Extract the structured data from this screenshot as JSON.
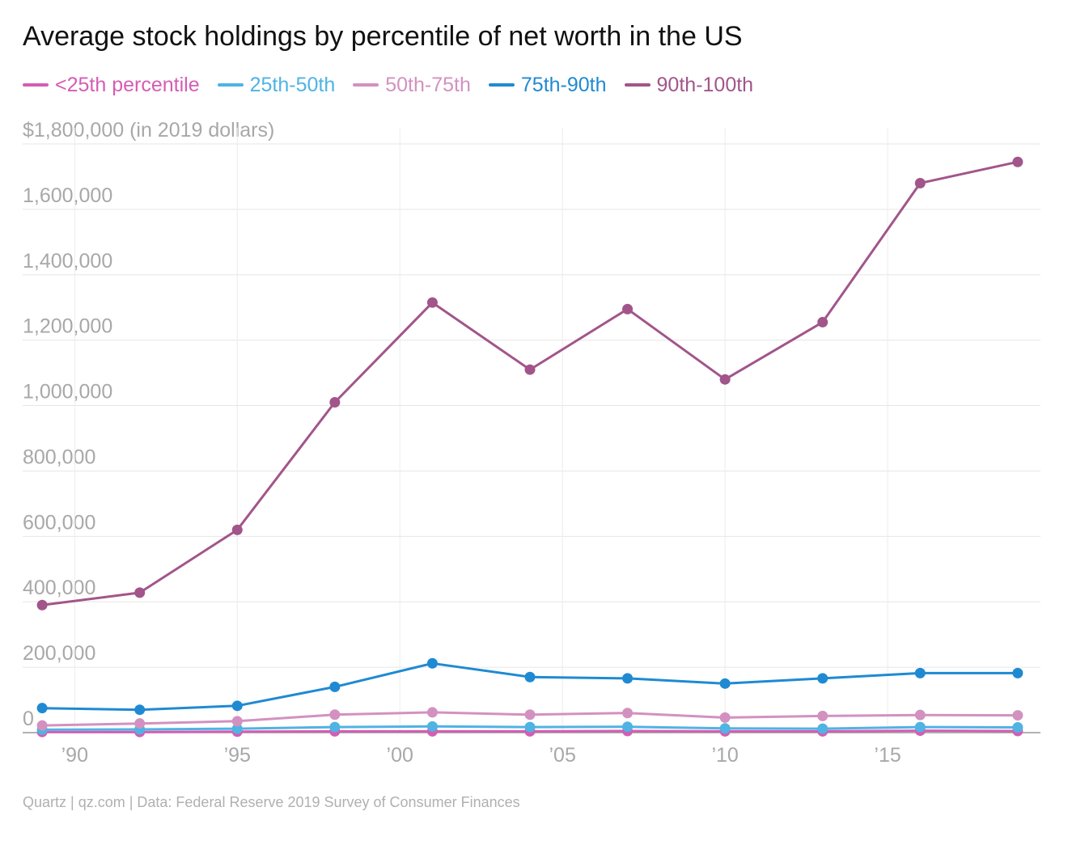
{
  "title": "Average stock holdings by percentile of net worth in the US",
  "source": "Quartz | qz.com | Data: Federal Reserve 2019 Survey of Consumer Finances",
  "chart_data": {
    "type": "line",
    "title": "Average stock holdings by percentile of net worth in the US",
    "y_tick_labels": [
      "0",
      "200,000",
      "400,000",
      "600,000",
      "800,000",
      "1,000,000",
      "1,200,000",
      "1,400,000",
      "1,600,000",
      "$1,800,000 (in 2019 dollars)"
    ],
    "y_ticks": [
      0,
      200000,
      400000,
      600000,
      800000,
      1000000,
      1200000,
      1400000,
      1600000,
      1800000
    ],
    "ylim": [
      0,
      1800000
    ],
    "x_tick_labels": [
      "’90",
      "’95",
      "’00",
      "’05",
      "’10",
      "’15"
    ],
    "x_ticks": [
      1990,
      1995,
      2000,
      2005,
      2010,
      2015
    ],
    "xlim": [
      1988.4,
      2019.7
    ],
    "x": [
      1989,
      1992,
      1995,
      1998,
      2001,
      2004,
      2007,
      2010,
      2013,
      2016,
      2019
    ],
    "grid": true,
    "legend_position": "top",
    "series": [
      {
        "name": "<25th percentile",
        "color": "#d45db4",
        "values": [
          2000,
          2000,
          3000,
          4000,
          4000,
          4000,
          5000,
          4000,
          4000,
          6000,
          5000
        ]
      },
      {
        "name": "25th-50th",
        "color": "#4fb3e3",
        "values": [
          9000,
          10000,
          12000,
          17000,
          19000,
          17000,
          18000,
          13000,
          12000,
          17000,
          16000
        ]
      },
      {
        "name": "50th-75th",
        "color": "#d391c0",
        "values": [
          22000,
          28000,
          35000,
          55000,
          62000,
          55000,
          60000,
          46000,
          51000,
          54000,
          53000
        ]
      },
      {
        "name": "75th-90th",
        "color": "#1f8ad2",
        "values": [
          75000,
          70000,
          82000,
          140000,
          212000,
          170000,
          166000,
          150000,
          166000,
          182000,
          182000
        ]
      },
      {
        "name": "90th-100th",
        "color": "#a2558a",
        "values": [
          390000,
          428000,
          620000,
          1010000,
          1315000,
          1110000,
          1295000,
          1080000,
          1255000,
          1680000,
          1745000
        ]
      }
    ]
  }
}
